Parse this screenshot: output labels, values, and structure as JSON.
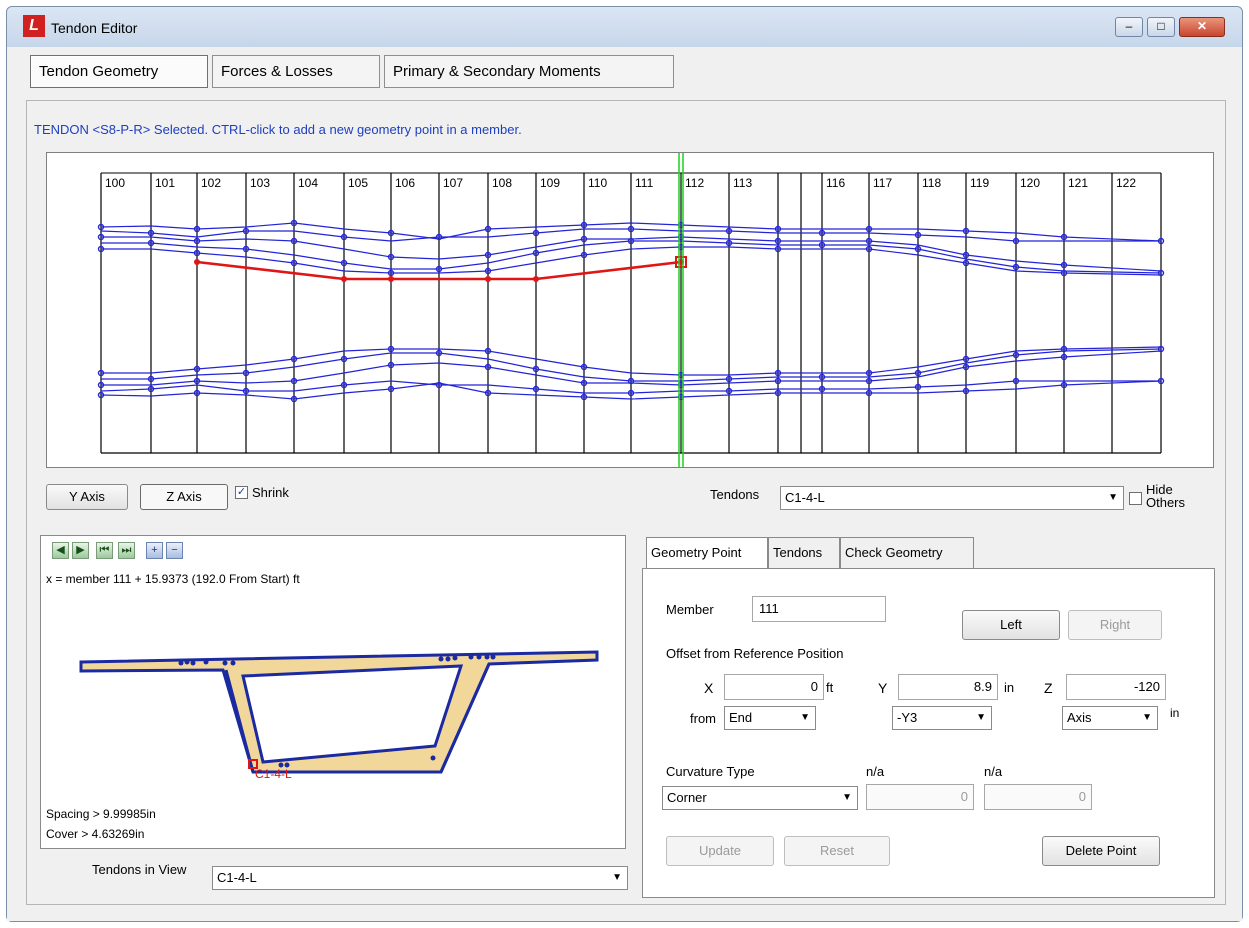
{
  "window": {
    "title": "Tendon Editor",
    "app_icon": "lcurve-logo-icon"
  },
  "title_buttons": {
    "minimize": "–",
    "maximize": "□",
    "close": "✕"
  },
  "main_tabs": [
    {
      "label": "Tendon Geometry",
      "active": true
    },
    {
      "label": "Forces & Losses",
      "active": false
    },
    {
      "label": "Primary & Secondary Moments",
      "active": false
    }
  ],
  "status_message": "TENDON <S8-P-R> Selected.  CTRL-click to add a new geometry point in a member.",
  "elevation": {
    "members": [
      "100",
      "101",
      "102",
      "103",
      "104",
      "105",
      "106",
      "107",
      "108",
      "109",
      "110",
      "111",
      "112",
      "113",
      "",
      "116",
      "117",
      "118",
      "119",
      "120",
      "121",
      "122"
    ],
    "member_lines_x": [
      100,
      150,
      196,
      245,
      293,
      343,
      390,
      438,
      487,
      535,
      583,
      630,
      680,
      728,
      777,
      800,
      821,
      868,
      917,
      965,
      1015,
      1063,
      1111,
      1160
    ],
    "cursor_x": 680,
    "colors": {
      "tendon": "#2323d8",
      "selected": "#e01515",
      "cursor": "#1fd21f"
    }
  },
  "axis_buttons": {
    "y_axis": "Y Axis",
    "z_axis": "Z Axis",
    "shrink_label": "Shrink",
    "shrink_checked": true
  },
  "tendons_selector": {
    "label": "Tendons",
    "value": "C1-4-L",
    "hide_others_line1": "Hide",
    "hide_others_line2": "Others"
  },
  "section": {
    "position_text": "x = member 111 + 15.9373 (192.0 From Start) ft",
    "tendon_label": "C1-4-L",
    "spacing": "Spacing > 9.99985in",
    "cover": "Cover > 4.63269in",
    "tendons_in_view_label": "Tendons in View",
    "tendons_in_view_value": "C1-4-L"
  },
  "right_tabs": [
    {
      "label": "Geometry Point",
      "active": true
    },
    {
      "label": "Tendons",
      "active": false
    },
    {
      "label": "Check Geometry",
      "active": false
    }
  ],
  "geometry_point": {
    "member_label": "Member",
    "member_value": "111",
    "left_button": "Left",
    "right_button": "Right",
    "offset_label": "Offset from Reference Position",
    "x_label": "X",
    "x_value": "0",
    "x_unit": "ft",
    "y_label": "Y",
    "y_value": "8.9",
    "y_unit": "in",
    "z_label": "Z",
    "z_value": "-120",
    "z_unit": "in",
    "from_label": "from",
    "from_value": "End",
    "y_ref": "-Y3",
    "z_ref": "Axis",
    "curvature_label": "Curvature Type",
    "curvature_value": "Corner",
    "na1_label": "n/a",
    "na1_value": "0",
    "na2_label": "n/a",
    "na2_value": "0",
    "update_button": "Update",
    "reset_button": "Reset",
    "delete_button": "Delete Point"
  }
}
